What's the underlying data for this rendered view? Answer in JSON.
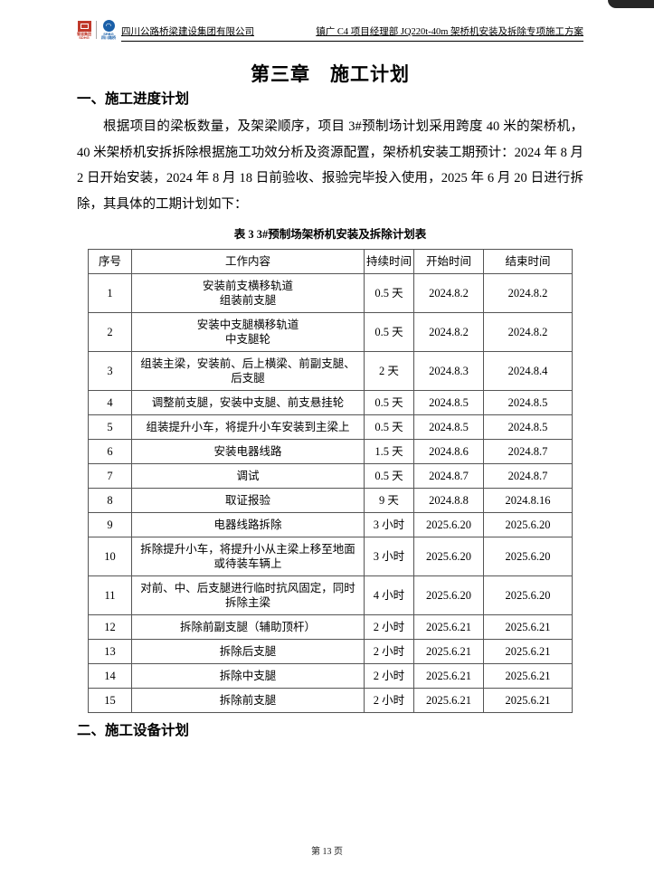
{
  "header": {
    "company": "四川公路桥梁建设集团有限公司",
    "doc_title": "镇广 C4 项目经理部 JQ220t-40m 架桥机安装及拆除专项施工方案",
    "logo_left_caption": "蜀道集团\nSDHG",
    "logo_right_caption": "SRBG\n四川路桥"
  },
  "chapter_title": "第三章　施工计划",
  "sections": {
    "progress_heading": "一、施工进度计划",
    "equipment_heading": "二、施工设备计划"
  },
  "paragraph": "根据项目的梁板数量，及架梁顺序，项目 3#预制场计划采用跨度 40 米的架桥机，40 米架桥机安拆拆除根据施工功效分析及资源配置，架桥机安装工期预计：2024 年 8 月 2 日开始安装，2024 年 8 月 18 日前验收、报验完毕投入使用，2025 年 6 月 20 日进行拆除，其具体的工期计划如下：",
  "table_caption": "表 3  3#预制场架桥机安装及拆除计划表",
  "table": {
    "headers": [
      "序号",
      "工作内容",
      "持续时间",
      "开始时间",
      "结束时间"
    ],
    "rows": [
      [
        "1",
        "安装前支横移轨道\n组装前支腿",
        "0.5 天",
        "2024.8.2",
        "2024.8.2"
      ],
      [
        "2",
        "安装中支腿横移轨道\n中支腿轮",
        "0.5 天",
        "2024.8.2",
        "2024.8.2"
      ],
      [
        "3",
        "组装主梁，安装前、后上横梁、前副支腿、\n后支腿",
        "2 天",
        "2024.8.3",
        "2024.8.4"
      ],
      [
        "4",
        "调整前支腿，安装中支腿、前支悬挂轮",
        "0.5 天",
        "2024.8.5",
        "2024.8.5"
      ],
      [
        "5",
        "组装提升小车，将提升小车安装到主梁上",
        "0.5 天",
        "2024.8.5",
        "2024.8.5"
      ],
      [
        "6",
        "安装电器线路",
        "1.5 天",
        "2024.8.6",
        "2024.8.7"
      ],
      [
        "7",
        "调试",
        "0.5 天",
        "2024.8.7",
        "2024.8.7"
      ],
      [
        "8",
        "取证报验",
        "9 天",
        "2024.8.8",
        "2024.8.16"
      ],
      [
        "9",
        "电器线路拆除",
        "3 小时",
        "2025.6.20",
        "2025.6.20"
      ],
      [
        "10",
        "拆除提升小车，将提升小从主梁上移至地面\n或待装车辆上",
        "3 小时",
        "2025.6.20",
        "2025.6.20"
      ],
      [
        "11",
        "对前、中、后支腿进行临时抗风固定，同时\n拆除主梁",
        "4 小时",
        "2025.6.20",
        "2025.6.20"
      ],
      [
        "12",
        "拆除前副支腿（辅助顶杆）",
        "2 小时",
        "2025.6.21",
        "2025.6.21"
      ],
      [
        "13",
        "拆除后支腿",
        "2 小时",
        "2025.6.21",
        "2025.6.21"
      ],
      [
        "14",
        "拆除中支腿",
        "2 小时",
        "2025.6.21",
        "2025.6.21"
      ],
      [
        "15",
        "拆除前支腿",
        "2 小时",
        "2025.6.21",
        "2025.6.21"
      ]
    ]
  },
  "footer": {
    "page_label": "第 13 页"
  },
  "colors": {
    "logo_red": "#c0392b",
    "logo_blue": "#1a5fa8",
    "border": "#555555"
  }
}
